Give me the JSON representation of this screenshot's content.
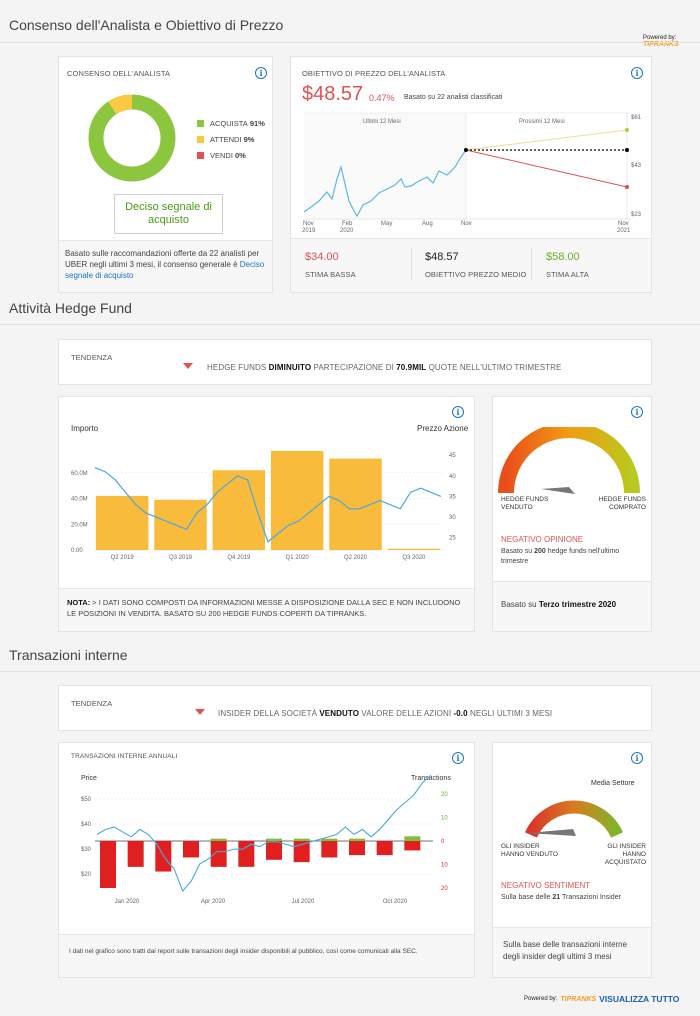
{
  "consensus_section": {
    "title": "Consenso dell'Analista e Obiettivo di Prezzo",
    "powered_by": "Powered by:",
    "brand": "TIPRANKS"
  },
  "consensus_card": {
    "header": "CONSENSO DELL'ANALISTA",
    "legend": [
      {
        "label": "ACQUISTA",
        "value": "91%",
        "color": "#8cc63f"
      },
      {
        "label": "ATTENDI",
        "value": "9%",
        "color": "#f9c942"
      },
      {
        "label": "VENDI",
        "value": "0%",
        "color": "#e05252"
      }
    ],
    "verdict": "Deciso segnale di acquisto",
    "footer_text": "Basato sulle raccomandazioni offerte da 22 analisti per UBER negli ultimi 3 mesi, il consenso generale è",
    "footer_link": "Deciso segnale di acquisto"
  },
  "price_target_card": {
    "header": "OBIETTIVO DI PREZZO DELL'ANALISTA",
    "price": "$48.57",
    "change": "0.47%",
    "basis": "Basato su 22 analisti classificati",
    "past_label": "Ultimi 12 Mesi",
    "future_label": "Prossimi 12 Mesi",
    "x_ticks": [
      {
        "top": "Nov",
        "bottom": "2019"
      },
      {
        "top": "Feb",
        "bottom": "2020"
      },
      {
        "top": "May",
        "bottom": ""
      },
      {
        "top": "Aug",
        "bottom": ""
      },
      {
        "top": "Nov",
        "bottom": ""
      },
      {
        "top": "Nov",
        "bottom": "2021"
      }
    ],
    "y_ticks": [
      "$61",
      "$43",
      "$23"
    ],
    "low": {
      "value": "$34.00",
      "label": "STIMA BASSA",
      "color": "#e05252"
    },
    "avg": {
      "value": "$48.57",
      "label": "OBIETTIVO PREZZO MEDIO",
      "color": "#222222"
    },
    "high": {
      "value": "$58.00",
      "label": "STIMA ALTA",
      "color": "#69b02a"
    }
  },
  "hedge_section": {
    "title": "Attività Hedge Fund"
  },
  "hedge_trend": {
    "label": "TENDENZA",
    "part1": "HEDGE FUNDS",
    "strong1": "DIMINUITO",
    "part2": "PARTECIPAZIONE DI",
    "strong2": "70.9MIL",
    "part3": "QUOTE NELL'ULTIMO TRIMESTRE"
  },
  "hedge_chart": {
    "left_label": "Importo",
    "right_label": "Prezzo Azione",
    "note_bold": "NOTA:",
    "note": "> I DATI SONO COMPOSTI DA INFORMAZIONI MESSE A DISPOSIZIONE DALLA SEC E NON INCLUDONO LE POSIZIONI IN VENDITA. BASATO SU 200 HEDGE FUNDS COPERTI DA TIPRANKS."
  },
  "chart_data": [
    {
      "type": "bar",
      "title": "",
      "ylabel": "Importo",
      "y2label": "Prezzo Azione",
      "categories": [
        "Q2 2019",
        "Q3 2019",
        "Q4 2019",
        "Q1 2020",
        "Q2 2020",
        "Q3 2020"
      ],
      "values": [
        42,
        39,
        62,
        77,
        71,
        1
      ],
      "y_ticks": [
        "60.0M",
        "40.0M",
        "20.0M",
        "0.00"
      ],
      "y2_ticks": [
        "45",
        "40",
        "35",
        "30",
        "25"
      ],
      "ylim": [
        0,
        80
      ],
      "y2lim": [
        22,
        47
      ],
      "price_series": [
        42,
        41,
        39,
        36,
        33,
        31,
        30,
        29,
        28,
        27,
        31,
        33,
        36,
        38,
        40,
        39,
        31,
        24,
        26,
        28,
        29,
        31,
        33,
        35,
        34,
        32,
        32,
        33,
        34,
        33,
        32,
        36,
        37,
        36,
        35
      ],
      "bar_color": "#f9bb3b"
    },
    {
      "type": "bar",
      "title": "TRANSAZIONI INTERNE ANNUALI",
      "ylabel": "Price",
      "y2label": "Transactions",
      "x_ticks": [
        "Jan 2020",
        "Apr 2020",
        "Jul 2020",
        "Oct 2020"
      ],
      "y_ticks": [
        "$50",
        "$40",
        "$30",
        "$20"
      ],
      "y2_ticks": [
        "20",
        "10",
        "0",
        "10",
        "20"
      ],
      "sells": [
        20,
        11,
        13,
        7,
        11,
        11,
        8,
        9,
        7,
        6,
        6,
        4
      ],
      "buys": [
        0,
        0,
        0,
        0,
        1,
        0,
        1,
        1,
        1,
        1,
        0,
        2
      ],
      "price_series": [
        39,
        41,
        42,
        40,
        38,
        41,
        39,
        35,
        29,
        25,
        16,
        20,
        27,
        29,
        32,
        32,
        33,
        33,
        35,
        34,
        36,
        36,
        35,
        34,
        35,
        36,
        37,
        38,
        39,
        42,
        39,
        41,
        38,
        41,
        45,
        49,
        52,
        55,
        60,
        63
      ],
      "sell_color": "#e02020",
      "buy_color": "#7dc03a"
    }
  ],
  "hedge_gauge": {
    "left_label": "HEDGE FUNDS VENDUTO",
    "right_label": "HEDGE FUNDS COMPRATO",
    "sentiment": "NEGATIVO OPINIONE",
    "desc_pre": "Basato su",
    "desc_num": "200",
    "desc_post": "hedge funds nell'ultimo trimestre",
    "footer_pre": "Basato su",
    "footer_bold": "Terzo trimestre 2020"
  },
  "insider_section": {
    "title": "Transazioni interne"
  },
  "insider_trend": {
    "label": "TENDENZA",
    "part1": "INSIDER DELLA SOCIETÀ",
    "strong1": "VENDUTO",
    "part2": "VALORE DELLE AZIONI",
    "strong2": "-0.0",
    "part3": "NEGLI ULTIMI 3 MESI"
  },
  "insider_chart": {
    "header": "TRANSAZIONI INTERNE ANNUALI",
    "left_label": "Price",
    "right_label": "Transactions",
    "footer": "I dati nel grafico sono tratti dai report sulle transazioni degli insider disponibili al pubblico, così come comunicati alla SEC."
  },
  "insider_gauge": {
    "top_label": "Media Settore",
    "left_label": "GLI INSIDER HANNO VENDUTO",
    "right_label": "GLI INSIDER HANNO ACQUISTATO",
    "sentiment": "NEGATIVO SENTIMENT",
    "desc_pre": "Sulla base delle",
    "desc_num": "21",
    "desc_post": "Transazioni Insider",
    "footer": "Sulla base delle transazioni interne degli insider degli ultimi 3 mesi"
  },
  "bottom_bar": {
    "powered_by": "Powered by:",
    "brand": "TIPRANKS",
    "view_all": "VISUALIZZA TUTTO"
  }
}
